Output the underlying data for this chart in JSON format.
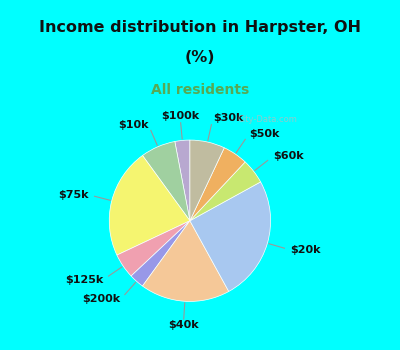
{
  "title_line1": "Income distribution in Harpster, OH",
  "title_line2": "(%)",
  "subtitle": "All residents",
  "title_color": "#111111",
  "subtitle_color": "#55aa55",
  "bg_cyan": "#00ffff",
  "bg_chart": "#d8eedc",
  "labels": [
    "$100k",
    "$10k",
    "$75k",
    "$125k",
    "$200k",
    "$40k",
    "$20k",
    "$60k",
    "$50k",
    "$30k"
  ],
  "values": [
    3,
    7,
    22,
    5,
    3,
    18,
    25,
    5,
    5,
    7
  ],
  "colors": [
    "#b8a8d0",
    "#a0d0a0",
    "#f5f570",
    "#f0a0b0",
    "#9898e8",
    "#f5c898",
    "#a8c8f0",
    "#c8e870",
    "#f0b060",
    "#c0bca0"
  ],
  "startangle": 90,
  "label_fontsize": 8,
  "label_color": "#111111",
  "line_color": "#999999"
}
